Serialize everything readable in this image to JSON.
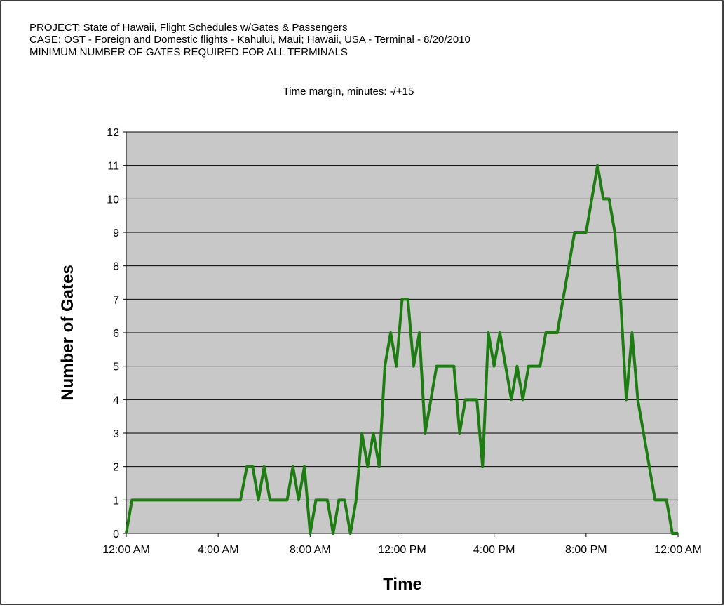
{
  "chart_data": {
    "type": "line",
    "title_lines": [
      "PROJECT: State of Hawaii,  Flight Schedules w/Gates & Passengers",
      "CASE: OST - Foreign and Domestic flights - Kahului, Maui; Hawaii, USA -  Terminal - 8/20/2010",
      "MINIMUM NUMBER OF GATES REQUIRED FOR ALL TERMINALS"
    ],
    "subtitle": "Time margin, minutes: -/+15",
    "x_label": "Time",
    "y_label": "Number of Gates",
    "series": [
      {
        "name": "Gates",
        "color": "#1e7d12",
        "x": [
          0,
          0.25,
          4.97,
          5.25,
          5.5,
          5.75,
          6.0,
          6.25,
          7.0,
          7.25,
          7.5,
          7.75,
          8.0,
          8.25,
          8.75,
          9.0,
          9.25,
          9.5,
          9.75,
          10.0,
          10.25,
          10.5,
          10.75,
          11.0,
          11.25,
          11.5,
          11.75,
          12.0,
          12.25,
          12.5,
          12.75,
          13.0,
          13.25,
          13.5,
          14.25,
          14.5,
          14.75,
          15.25,
          15.5,
          15.75,
          16.0,
          16.25,
          16.75,
          17.0,
          17.25,
          17.5,
          18.0,
          18.25,
          18.75,
          19.5,
          20.0,
          20.5,
          20.75,
          21.0,
          21.25,
          21.5,
          21.75,
          22.0,
          22.25,
          23.0,
          23.5,
          23.75,
          24.0
        ],
        "values": [
          0,
          1,
          1,
          2,
          2,
          1,
          2,
          1,
          1,
          2,
          1,
          2,
          0,
          1,
          1,
          0,
          1,
          1,
          0,
          1,
          3,
          2,
          3,
          2,
          5,
          6,
          5,
          7,
          7,
          5,
          6,
          3,
          4,
          5,
          5,
          3,
          4,
          4,
          2,
          6,
          5,
          6,
          4,
          5,
          4,
          5,
          5,
          6,
          6,
          9,
          9,
          11,
          10,
          10,
          9,
          7,
          4,
          6,
          4,
          1,
          1,
          0,
          0
        ]
      }
    ],
    "xlim": [
      0,
      24
    ],
    "xticks": [
      {
        "value": 0,
        "label": "12:00 AM"
      },
      {
        "value": 4,
        "label": "4:00 AM"
      },
      {
        "value": 8,
        "label": "8:00 AM"
      },
      {
        "value": 12,
        "label": "12:00 PM"
      },
      {
        "value": 16,
        "label": "4:00 PM"
      },
      {
        "value": 20,
        "label": "8:00 PM"
      },
      {
        "value": 24,
        "label": "12:00 AM"
      }
    ],
    "ylim": [
      0,
      12
    ],
    "yticks": [
      0,
      1,
      2,
      3,
      4,
      5,
      6,
      7,
      8,
      9,
      10,
      11,
      12
    ],
    "grid": true
  }
}
